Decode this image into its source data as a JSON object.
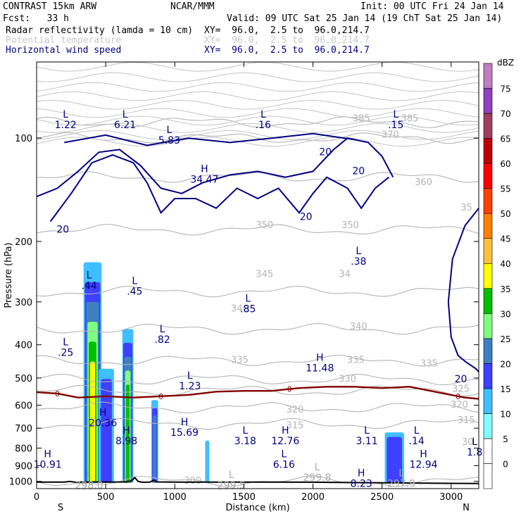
{
  "header": {
    "model": "CONTRAST 15km ARW",
    "org": "NCAR/MMM",
    "init": "Init: 00 UTC Fri 24 Jan 14",
    "fcst": "Fcst:   33 h",
    "valid": "Valid: 09 UTC Sat 25 Jan 14 (19 ChT Sat 25 Jan 14)"
  },
  "fields": [
    {
      "name": "Radar reflectivity (lamda = 10 cm)",
      "xy": "XY=  96.0,  2.5 to  96.0,214.7",
      "color": "#000000"
    },
    {
      "name": "Potential temperature",
      "xy": "XY=  96.0,  2.5 to  96.0,214.7",
      "color": "#c8c8c8"
    },
    {
      "name": "Horizontal wind speed",
      "xy": "XY=  96.0,  2.5 to  96.0,214.7",
      "color": "#000080"
    }
  ],
  "chart_data": {
    "type": "heatmap",
    "xlabel": "Distance (km)",
    "ylabel": "Pressure (hPa)",
    "xlim": [
      0,
      3200
    ],
    "ylim": [
      1050,
      60
    ],
    "xticks": [
      0,
      500,
      1000,
      1500,
      2000,
      2500,
      3000
    ],
    "yticks": [
      100,
      200,
      300,
      400,
      500,
      600,
      700,
      800,
      900,
      1000
    ],
    "x_end_labels": {
      "left": "S",
      "right": "N"
    },
    "colorbar": {
      "unit": "dBZ",
      "levels": [
        0,
        5,
        10,
        15,
        20,
        25,
        30,
        35,
        40,
        45,
        50,
        55,
        60,
        65,
        70,
        75
      ],
      "colors": [
        "#ffffff",
        "#ffffff",
        "#7fffff",
        "#3fbfff",
        "#3f3fff",
        "#3f7fbf",
        "#7fff7f",
        "#00bf00",
        "#ffff00",
        "#ffbf40",
        "#ff7f00",
        "#ff3f00",
        "#ff0000",
        "#c00000",
        "#9f3f5f",
        "#8f3fbf",
        "#bf7fbf"
      ]
    },
    "reflectivity_columns": [
      {
        "x_range": [
          340,
          470
        ],
        "top_hPa": 230,
        "max_dBZ": 35
      },
      {
        "x_range": [
          450,
          560
        ],
        "top_hPa": 470,
        "max_dBZ": 15
      },
      {
        "x_range": [
          620,
          700
        ],
        "top_hPa": 360,
        "max_dBZ": 30
      },
      {
        "x_range": [
          830,
          880
        ],
        "top_hPa": 580,
        "max_dBZ": 20
      },
      {
        "x_range": [
          1220,
          1250
        ],
        "top_hPa": 760,
        "max_dBZ": 10
      },
      {
        "x_range": [
          2520,
          2660
        ],
        "top_hPa": 720,
        "max_dBZ": 15
      }
    ],
    "freezing_level": {
      "label": "0",
      "color": "#800000",
      "points": [
        [
          0,
          550
        ],
        [
          150,
          555
        ],
        [
          300,
          570
        ],
        [
          500,
          565
        ],
        [
          700,
          570
        ],
        [
          900,
          565
        ],
        [
          1100,
          560
        ],
        [
          1300,
          548
        ],
        [
          1500,
          545
        ],
        [
          1700,
          545
        ],
        [
          1900,
          535
        ],
        [
          2100,
          530
        ],
        [
          2300,
          530
        ],
        [
          2500,
          535
        ],
        [
          2700,
          530
        ],
        [
          2900,
          550
        ],
        [
          3100,
          570
        ],
        [
          3200,
          575
        ]
      ],
      "label_x": [
        150,
        900,
        1830,
        3050
      ]
    },
    "theta_contours": [
      {
        "label": "300",
        "p": 1000
      },
      {
        "label": "315",
        "p": 680
      },
      {
        "label": "320",
        "p": 610
      },
      {
        "label": "325",
        "p": 545
      },
      {
        "label": "330",
        "p": 505
      },
      {
        "label": "335",
        "p": 445
      },
      {
        "label": "340",
        "p": 360
      },
      {
        "label": "345",
        "p": 280
      },
      {
        "label": "350",
        "p": 185
      },
      {
        "label": "360",
        "p": 130
      },
      {
        "label": "370",
        "p": 100
      },
      {
        "label": "385",
        "p": 90
      }
    ],
    "theta_label_positions": [
      {
        "label": "385",
        "x": 2350,
        "p": 88
      },
      {
        "label": "385",
        "x": 2700,
        "p": 88
      },
      {
        "label": "370",
        "x": 2560,
        "p": 98
      },
      {
        "label": "360",
        "x": 2800,
        "p": 135
      },
      {
        "label": "350",
        "x": 1650,
        "p": 180
      },
      {
        "label": "350",
        "x": 2270,
        "p": 180
      },
      {
        "label": "35",
        "x": 3110,
        "p": 160
      },
      {
        "label": "345",
        "x": 1650,
        "p": 250
      },
      {
        "label": "34",
        "x": 2230,
        "p": 250
      },
      {
        "label": "340",
        "x": 1470,
        "p": 315
      },
      {
        "label": "340",
        "x": 2330,
        "p": 355
      },
      {
        "label": "335",
        "x": 1470,
        "p": 445
      },
      {
        "label": "335",
        "x": 2310,
        "p": 445
      },
      {
        "label": "335",
        "x": 2840,
        "p": 455
      },
      {
        "label": "330",
        "x": 2250,
        "p": 505
      },
      {
        "label": "325",
        "x": 3070,
        "p": 540
      },
      {
        "label": "320",
        "x": 1870,
        "p": 620
      },
      {
        "label": "320",
        "x": 3060,
        "p": 600
      },
      {
        "label": "315",
        "x": 1870,
        "p": 690
      },
      {
        "label": "315",
        "x": 3110,
        "p": 665
      },
      {
        "label": "30",
        "x": 3120,
        "p": 770
      },
      {
        "label": "300",
        "x": 1130,
        "p": 1000
      }
    ],
    "wind_contours_label": "20",
    "wind_label_positions": [
      {
        "x": 190,
        "p": 185
      },
      {
        "x": 2090,
        "p": 110
      },
      {
        "x": 2330,
        "p": 125
      },
      {
        "x": 1950,
        "p": 170
      },
      {
        "x": 3070,
        "p": 505
      }
    ],
    "extrema": [
      {
        "type": "L",
        "value": "1.22",
        "x": 210,
        "p": 90,
        "color": "#000080"
      },
      {
        "type": "L",
        "value": "6.21",
        "x": 640,
        "p": 90,
        "color": "#000080"
      },
      {
        "type": "L",
        "value": "5.83",
        "x": 960,
        "p": 100,
        "color": "#000080"
      },
      {
        "type": "H",
        "value": "34.47",
        "x": 1215,
        "p": 130,
        "color": "#000080"
      },
      {
        "type": "L",
        "value": ".16",
        "x": 1640,
        "p": 90,
        "color": "#000080"
      },
      {
        "type": "L",
        "value": ".15",
        "x": 2600,
        "p": 90,
        "color": "#000080"
      },
      {
        "type": "L",
        "value": ".38",
        "x": 2330,
        "p": 225,
        "color": "#000080"
      },
      {
        "type": "L",
        "value": ".44",
        "x": 380,
        "p": 265,
        "color": "#000080"
      },
      {
        "type": "L",
        "value": ".45",
        "x": 710,
        "p": 275,
        "color": "#000080"
      },
      {
        "type": "L",
        "value": ".85",
        "x": 1530,
        "p": 310,
        "color": "#000080"
      },
      {
        "type": "L",
        "value": ".82",
        "x": 910,
        "p": 380,
        "color": "#000080"
      },
      {
        "type": "L",
        "value": ".25",
        "x": 210,
        "p": 415,
        "color": "#000080"
      },
      {
        "type": "H",
        "value": "11.48",
        "x": 2050,
        "p": 460,
        "color": "#000080"
      },
      {
        "type": "L",
        "value": "1.23",
        "x": 1110,
        "p": 520,
        "color": "#000080"
      },
      {
        "type": "H",
        "value": "20.36",
        "x": 480,
        "p": 665,
        "color": "#000080"
      },
      {
        "type": "H",
        "value": "8.98",
        "x": 650,
        "p": 750,
        "color": "#000080"
      },
      {
        "type": "H",
        "value": "15.69",
        "x": 1070,
        "p": 710,
        "color": "#000080"
      },
      {
        "type": "L",
        "value": "3.18",
        "x": 1510,
        "p": 750,
        "color": "#000080"
      },
      {
        "type": "H",
        "value": "12.76",
        "x": 1800,
        "p": 750,
        "color": "#000080"
      },
      {
        "type": "L",
        "value": "3.11",
        "x": 2390,
        "p": 750,
        "color": "#000080"
      },
      {
        "type": "L",
        "value": ".14",
        "x": 2750,
        "p": 750,
        "color": "#000080"
      },
      {
        "type": "L",
        "value": "1.8",
        "x": 3170,
        "p": 810,
        "color": "#000080"
      },
      {
        "type": "H",
        "value": "10.91",
        "x": 80,
        "p": 880,
        "color": "#000080"
      },
      {
        "type": "L",
        "value": "6.16",
        "x": 1790,
        "p": 880,
        "color": "#000080"
      },
      {
        "type": "H",
        "value": "12.94",
        "x": 2800,
        "p": 880,
        "color": "#000080"
      },
      {
        "type": "L",
        "value": "299.8",
        "x": 2030,
        "p": 960,
        "color": "#aaaaaa"
      },
      {
        "type": "H",
        "value": "8.23",
        "x": 2350,
        "p": 1000,
        "color": "#000080"
      },
      {
        "type": "L",
        "value": "297.9",
        "x": 2640,
        "p": 1000,
        "color": "#aaaaaa"
      },
      {
        "type": "L",
        "value": "298.0",
        "x": 380,
        "p": 1010,
        "color": "#aaaaaa"
      },
      {
        "type": "L",
        "value": "299.5",
        "x": 1410,
        "p": 1010,
        "color": "#aaaaaa"
      }
    ],
    "terrain": {
      "color": "#000000",
      "points": [
        [
          0,
          1005
        ],
        [
          200,
          1005
        ],
        [
          240,
          1000
        ],
        [
          280,
          1006
        ],
        [
          400,
          1004
        ],
        [
          500,
          1005
        ],
        [
          650,
          1004
        ],
        [
          690,
          995
        ],
        [
          710,
          975
        ],
        [
          735,
          1000
        ],
        [
          760,
          1006
        ],
        [
          820,
          1005
        ],
        [
          850,
          992
        ],
        [
          870,
          1004
        ],
        [
          1000,
          1005
        ],
        [
          1500,
          1005
        ],
        [
          2000,
          1006
        ],
        [
          2500,
          1010
        ],
        [
          2900,
          1013
        ],
        [
          3200,
          1015
        ]
      ]
    }
  }
}
